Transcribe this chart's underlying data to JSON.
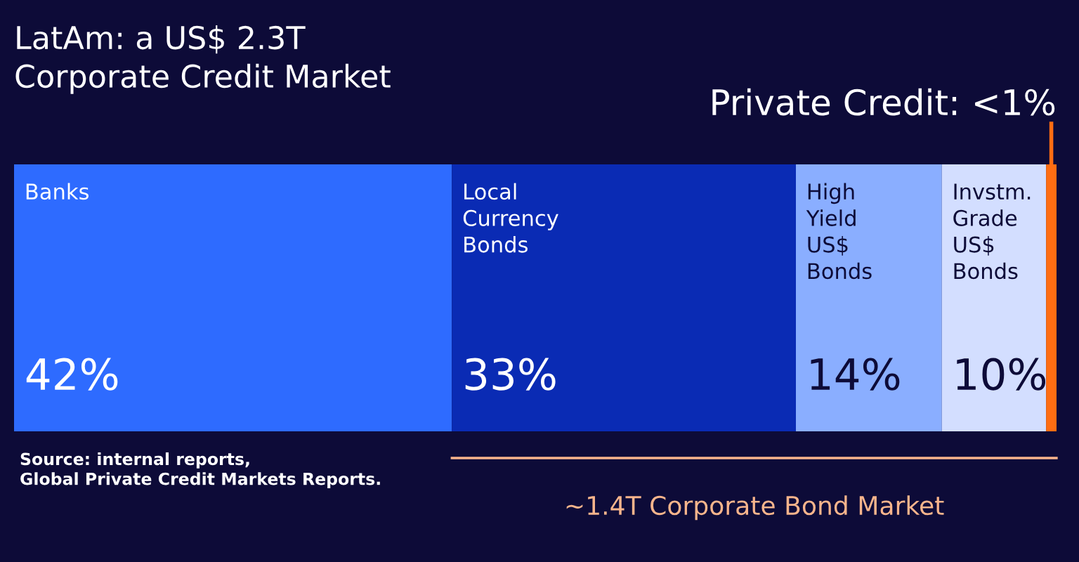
{
  "chart_data": {
    "type": "bar",
    "stacked": true,
    "orientation": "horizontal",
    "title": "LatAm: a US$ 2.3T\nCorporate Credit Market",
    "categories": [
      null
    ],
    "xlim": [
      0,
      100
    ],
    "tick_labels": false,
    "series": [
      {
        "name": "Banks",
        "color": "#2e6bff",
        "values": [
          42
        ],
        "value_labels": [
          "42%"
        ]
      },
      {
        "name": "Local\nCurrency\nBonds",
        "color": "#0a2bb4",
        "values": [
          33
        ],
        "value_labels": [
          "33%"
        ]
      },
      {
        "name": "High\nYield\nUS$\nBonds",
        "color": "#8aaeff",
        "values": [
          14
        ],
        "value_labels": [
          "14%"
        ]
      },
      {
        "name": "Invstm.\nGrade\nUS$\nBonds",
        "color": "#d3deff",
        "values": [
          10
        ],
        "value_labels": [
          "10%"
        ]
      },
      {
        "color": "#ff6d12",
        "values": [
          1
        ]
      }
    ],
    "annotations": [
      "Private Credit: <1%",
      "~1.4T Corporate Bond Market",
      "Source: internal reports,\nGlobal Private Credit Markets Reports."
    ]
  }
}
